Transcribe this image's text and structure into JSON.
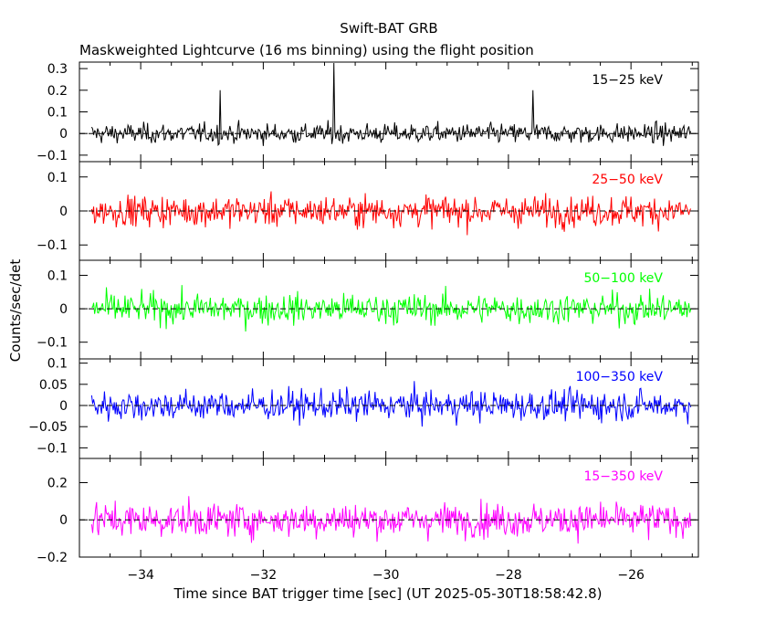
{
  "chart_data": {
    "type": "line",
    "title": "Swift-BAT GRB",
    "subtitle": "Maskweighted Lightcurve (16 ms binning) using the flight position",
    "xlabel": "Time since BAT trigger time [sec] (UT 2025-05-30T18:58:42.8)",
    "ylabel": "Counts/sec/det",
    "xlim": [
      -35.0,
      -24.9
    ],
    "x_ticks": [
      -34,
      -32,
      -30,
      -28,
      -26
    ],
    "x_tick_labels": [
      "−34",
      "−32",
      "−30",
      "−28",
      "−26"
    ],
    "x_range_data": [
      -34.8,
      -25.0
    ],
    "bin_width_sec": 0.016,
    "grid": false,
    "panels": [
      {
        "name": "15-25 keV",
        "label": "15−25 keV",
        "color": "#000000",
        "ylim": [
          -0.13,
          0.33
        ],
        "y_ticks": [
          -0.1,
          0,
          0.1,
          0.2,
          0.3
        ],
        "y_tick_labels": [
          "−0.1",
          "0",
          "0.1",
          "0.2",
          "0.3"
        ],
        "noise_sigma": 0.05,
        "spikes": [
          [
            -30.85,
            0.36
          ],
          [
            -32.7,
            0.2
          ],
          [
            -27.6,
            0.2
          ]
        ]
      },
      {
        "name": "25-50 keV",
        "label": "25−50 keV",
        "color": "#ff0000",
        "ylim": [
          -0.145,
          0.145
        ],
        "y_ticks": [
          -0.1,
          0,
          0.1
        ],
        "y_tick_labels": [
          "−0.1",
          "0",
          "0.1"
        ],
        "noise_sigma": 0.05,
        "spikes": []
      },
      {
        "name": "50-100 keV",
        "label": "50−100 keV",
        "color": "#00ff00",
        "ylim": [
          -0.15,
          0.145
        ],
        "y_ticks": [
          -0.1,
          0,
          0.1
        ],
        "y_tick_labels": [
          "−0.1",
          "0",
          "0.1"
        ],
        "noise_sigma": 0.05,
        "spikes": []
      },
      {
        "name": "100-350 keV",
        "label": "100−350 keV",
        "color": "#0000ff",
        "ylim": [
          -0.125,
          0.11
        ],
        "y_ticks": [
          -0.1,
          -0.05,
          0,
          0.05,
          0.1
        ],
        "y_tick_labels": [
          "−0.1",
          "−0.05",
          "0",
          "0.05",
          "0.1"
        ],
        "noise_sigma": 0.04,
        "spikes": []
      },
      {
        "name": "15-350 keV",
        "label": "15−350 keV",
        "color": "#ff00ff",
        "ylim": [
          -0.2,
          0.33
        ],
        "y_ticks": [
          -0.2,
          0,
          0.2
        ],
        "y_tick_labels": [
          "−0.2",
          "0",
          "0.2"
        ],
        "noise_sigma": 0.1,
        "spikes": []
      }
    ]
  }
}
